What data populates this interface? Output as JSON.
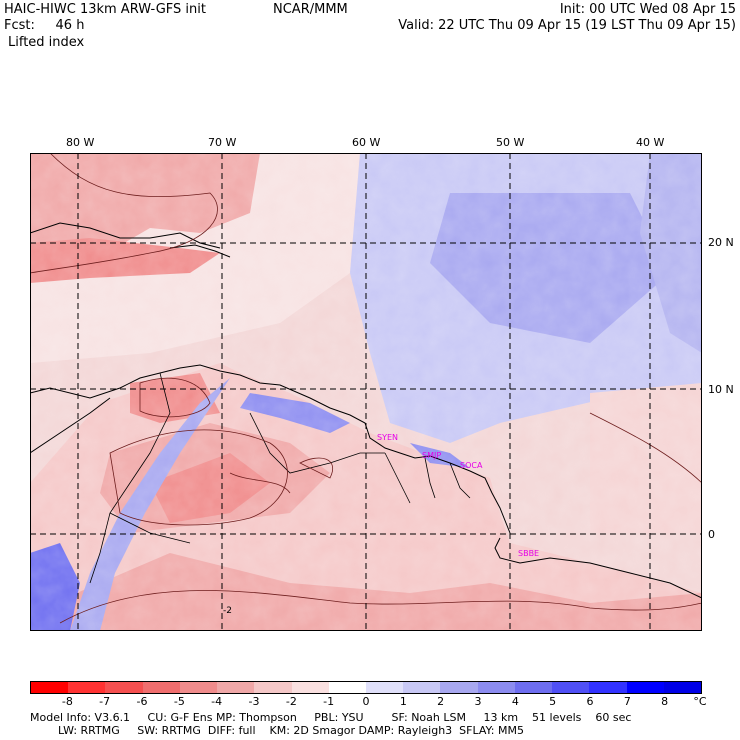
{
  "header": {
    "title": "HAIC-HIWC 13km ARW-GFS init",
    "org": "NCAR/MMM",
    "init": "Init: 00 UTC Wed 08 Apr 15",
    "fcst": "Fcst:     46 h",
    "valid": "Valid: 22 UTC Thu 09 Apr 15 (19 LST Thu 09 Apr 15)",
    "field": "Lifted index"
  },
  "map": {
    "lon_labels": [
      "80 W",
      "70 W",
      "60 W",
      "50 W",
      "40 W"
    ],
    "lat_labels": [
      "20 N",
      "10 N",
      "0"
    ],
    "stations": [
      "SYEN",
      "SMJP",
      "SOCA",
      "SBBE"
    ],
    "contour_label": "-2",
    "colors": {
      "negative": "#f08c8c",
      "positive": "#b4b4f0",
      "station": "#e600e6"
    }
  },
  "colorbar": {
    "unit": "°C",
    "ticks": [
      "-8",
      "-7",
      "-6",
      "-5",
      "-4",
      "-3",
      "-2",
      "-1",
      "0",
      "1",
      "2",
      "3",
      "4",
      "5",
      "6",
      "7",
      "8"
    ],
    "colors": [
      "#ff0000",
      "#ff3232",
      "#f55050",
      "#f06e6e",
      "#f08c8c",
      "#f0a8a8",
      "#f5c8c8",
      "#fae0e0",
      "#ffffff",
      "#e0e0fa",
      "#c8c8f5",
      "#a8a8f0",
      "#8c8cf0",
      "#6e6ef0",
      "#5050f5",
      "#3232ff",
      "#0000ff",
      "#0000e6"
    ]
  },
  "footer": {
    "line1": "Model Info: V3.6.1     CU: G-F Ens MP: Thompson     PBL: YSU        SF: Noah LSM     13 km    51 levels    60 sec",
    "line2": "        LW: RRTMG     SW: RRTMG  DIFF: full    KM: 2D Smagor DAMP: Rayleigh3  SFLAY: MM5"
  }
}
